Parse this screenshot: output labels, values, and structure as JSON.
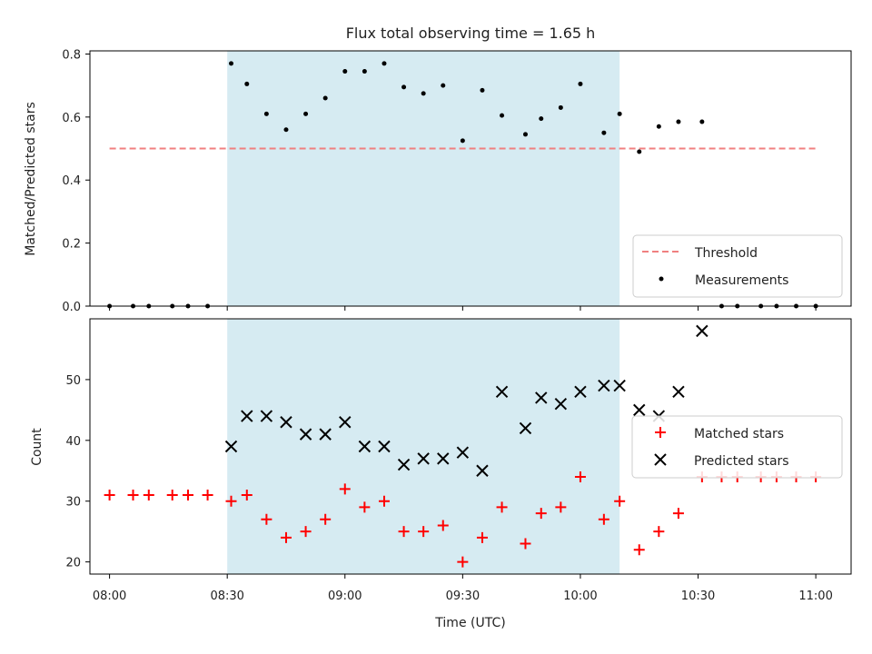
{
  "chart_data": {
    "title": "Flux total observing time = 1.65 h",
    "xlabel": "Time (UTC)",
    "x_ticks": [
      "08:00",
      "08:30",
      "09:00",
      "09:30",
      "10:00",
      "10:30",
      "11:00"
    ],
    "xlim": [
      "07:55",
      "11:09"
    ],
    "shaded_interval": [
      "08:30",
      "10:10"
    ],
    "shade_color": "#add8e6",
    "panels": [
      {
        "type": "scatter",
        "ylabel": "Matched/Predicted stars",
        "ylim": [
          0.0,
          0.81
        ],
        "y_ticks": [
          "0.0",
          "0.2",
          "0.4",
          "0.6",
          "0.8"
        ],
        "legend_position": "lower-right",
        "threshold": {
          "name": "Threshold",
          "value": 0.5,
          "x_range": [
            "08:00",
            "11:00"
          ],
          "color": "#f08080"
        },
        "series": [
          {
            "name": "Measurements",
            "marker": "dot",
            "color": "#000000",
            "points": [
              {
                "x": "08:00",
                "y": 0.0
              },
              {
                "x": "08:06",
                "y": 0.0
              },
              {
                "x": "08:10",
                "y": 0.0
              },
              {
                "x": "08:16",
                "y": 0.0
              },
              {
                "x": "08:20",
                "y": 0.0
              },
              {
                "x": "08:25",
                "y": 0.0
              },
              {
                "x": "08:31",
                "y": 0.77
              },
              {
                "x": "08:35",
                "y": 0.705
              },
              {
                "x": "08:40",
                "y": 0.61
              },
              {
                "x": "08:45",
                "y": 0.56
              },
              {
                "x": "08:50",
                "y": 0.61
              },
              {
                "x": "08:55",
                "y": 0.66
              },
              {
                "x": "09:00",
                "y": 0.745
              },
              {
                "x": "09:05",
                "y": 0.745
              },
              {
                "x": "09:10",
                "y": 0.77
              },
              {
                "x": "09:15",
                "y": 0.695
              },
              {
                "x": "09:20",
                "y": 0.675
              },
              {
                "x": "09:25",
                "y": 0.7
              },
              {
                "x": "09:30",
                "y": 0.525
              },
              {
                "x": "09:35",
                "y": 0.685
              },
              {
                "x": "09:40",
                "y": 0.605
              },
              {
                "x": "09:46",
                "y": 0.545
              },
              {
                "x": "09:50",
                "y": 0.595
              },
              {
                "x": "09:55",
                "y": 0.63
              },
              {
                "x": "10:00",
                "y": 0.705
              },
              {
                "x": "10:06",
                "y": 0.55
              },
              {
                "x": "10:10",
                "y": 0.61
              },
              {
                "x": "10:15",
                "y": 0.49
              },
              {
                "x": "10:20",
                "y": 0.57
              },
              {
                "x": "10:25",
                "y": 0.585
              },
              {
                "x": "10:31",
                "y": 0.585
              },
              {
                "x": "10:36",
                "y": 0.0
              },
              {
                "x": "10:40",
                "y": 0.0
              },
              {
                "x": "10:46",
                "y": 0.0
              },
              {
                "x": "10:50",
                "y": 0.0
              },
              {
                "x": "10:55",
                "y": 0.0
              },
              {
                "x": "11:00",
                "y": 0.0
              }
            ]
          }
        ]
      },
      {
        "type": "scatter",
        "ylabel": "Count",
        "ylim": [
          18.0,
          60.0
        ],
        "y_ticks": [
          "20",
          "30",
          "40",
          "50"
        ],
        "legend_position": "center-right",
        "series": [
          {
            "name": "Matched stars",
            "marker": "plus",
            "color": "#ff0000",
            "points": [
              {
                "x": "08:00",
                "y": 31
              },
              {
                "x": "08:06",
                "y": 31
              },
              {
                "x": "08:10",
                "y": 31
              },
              {
                "x": "08:16",
                "y": 31
              },
              {
                "x": "08:20",
                "y": 31
              },
              {
                "x": "08:25",
                "y": 31
              },
              {
                "x": "08:31",
                "y": 30
              },
              {
                "x": "08:35",
                "y": 31
              },
              {
                "x": "08:40",
                "y": 27
              },
              {
                "x": "08:45",
                "y": 24
              },
              {
                "x": "08:50",
                "y": 25
              },
              {
                "x": "08:55",
                "y": 27
              },
              {
                "x": "09:00",
                "y": 32
              },
              {
                "x": "09:05",
                "y": 29
              },
              {
                "x": "09:10",
                "y": 30
              },
              {
                "x": "09:15",
                "y": 25
              },
              {
                "x": "09:20",
                "y": 25
              },
              {
                "x": "09:25",
                "y": 26
              },
              {
                "x": "09:30",
                "y": 20
              },
              {
                "x": "09:35",
                "y": 24
              },
              {
                "x": "09:40",
                "y": 29
              },
              {
                "x": "09:46",
                "y": 23
              },
              {
                "x": "09:50",
                "y": 28
              },
              {
                "x": "09:55",
                "y": 29
              },
              {
                "x": "10:00",
                "y": 34
              },
              {
                "x": "10:06",
                "y": 27
              },
              {
                "x": "10:10",
                "y": 30
              },
              {
                "x": "10:15",
                "y": 22
              },
              {
                "x": "10:20",
                "y": 25
              },
              {
                "x": "10:25",
                "y": 28
              },
              {
                "x": "10:31",
                "y": 34
              },
              {
                "x": "10:36",
                "y": 34
              },
              {
                "x": "10:40",
                "y": 34
              },
              {
                "x": "10:46",
                "y": 34
              },
              {
                "x": "10:50",
                "y": 34
              },
              {
                "x": "10:55",
                "y": 34
              },
              {
                "x": "11:00",
                "y": 34
              }
            ]
          },
          {
            "name": "Predicted stars",
            "marker": "x",
            "color": "#000000",
            "points": [
              {
                "x": "08:31",
                "y": 39
              },
              {
                "x": "08:35",
                "y": 44
              },
              {
                "x": "08:40",
                "y": 44
              },
              {
                "x": "08:45",
                "y": 43
              },
              {
                "x": "08:50",
                "y": 41
              },
              {
                "x": "08:55",
                "y": 41
              },
              {
                "x": "09:00",
                "y": 43
              },
              {
                "x": "09:05",
                "y": 39
              },
              {
                "x": "09:10",
                "y": 39
              },
              {
                "x": "09:15",
                "y": 36
              },
              {
                "x": "09:20",
                "y": 37
              },
              {
                "x": "09:25",
                "y": 37
              },
              {
                "x": "09:30",
                "y": 38
              },
              {
                "x": "09:35",
                "y": 35
              },
              {
                "x": "09:40",
                "y": 48
              },
              {
                "x": "09:46",
                "y": 42
              },
              {
                "x": "09:50",
                "y": 47
              },
              {
                "x": "09:55",
                "y": 46
              },
              {
                "x": "10:00",
                "y": 48
              },
              {
                "x": "10:06",
                "y": 49
              },
              {
                "x": "10:10",
                "y": 49
              },
              {
                "x": "10:15",
                "y": 45
              },
              {
                "x": "10:20",
                "y": 44
              },
              {
                "x": "10:25",
                "y": 48
              },
              {
                "x": "10:31",
                "y": 58
              }
            ]
          }
        ]
      }
    ]
  }
}
